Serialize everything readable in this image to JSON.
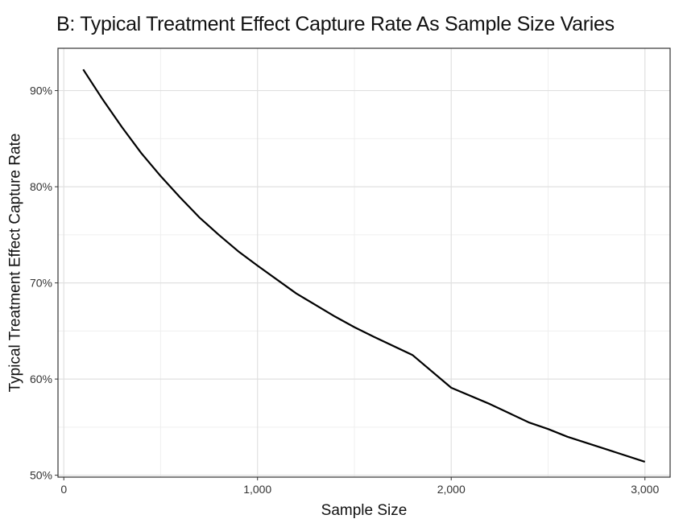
{
  "chart_data": {
    "type": "line",
    "title": "B: Typical Treatment Effect Capture Rate As Sample Size Varies",
    "xlabel": "Sample Size",
    "ylabel": "Typical Treatment Effect Capture Rate",
    "xlim": [
      -30,
      3130
    ],
    "ylim": [
      0.498,
      0.944
    ],
    "x_ticks": [
      0,
      1000,
      2000,
      3000
    ],
    "x_tick_labels": [
      "0",
      "1,000",
      "2,000",
      "3,000"
    ],
    "y_ticks": [
      0.5,
      0.6,
      0.7,
      0.8,
      0.9
    ],
    "y_tick_labels": [
      "50%",
      "60%",
      "70%",
      "80%",
      "90%"
    ],
    "grid": true,
    "legend": "none",
    "line_color": "#000000",
    "series": [
      {
        "x": [
          100,
          200,
          300,
          400,
          500,
          600,
          700,
          800,
          900,
          1000,
          1200,
          1400,
          1500,
          1600,
          1800,
          2000,
          2200,
          2400,
          2500,
          2600,
          2800,
          3000
        ],
        "y": [
          0.922,
          0.891,
          0.862,
          0.835,
          0.811,
          0.789,
          0.768,
          0.75,
          0.733,
          0.718,
          0.689,
          0.665,
          0.654,
          0.644,
          0.625,
          0.591,
          0.574,
          0.555,
          0.548,
          0.54,
          0.527,
          0.514
        ]
      }
    ]
  }
}
